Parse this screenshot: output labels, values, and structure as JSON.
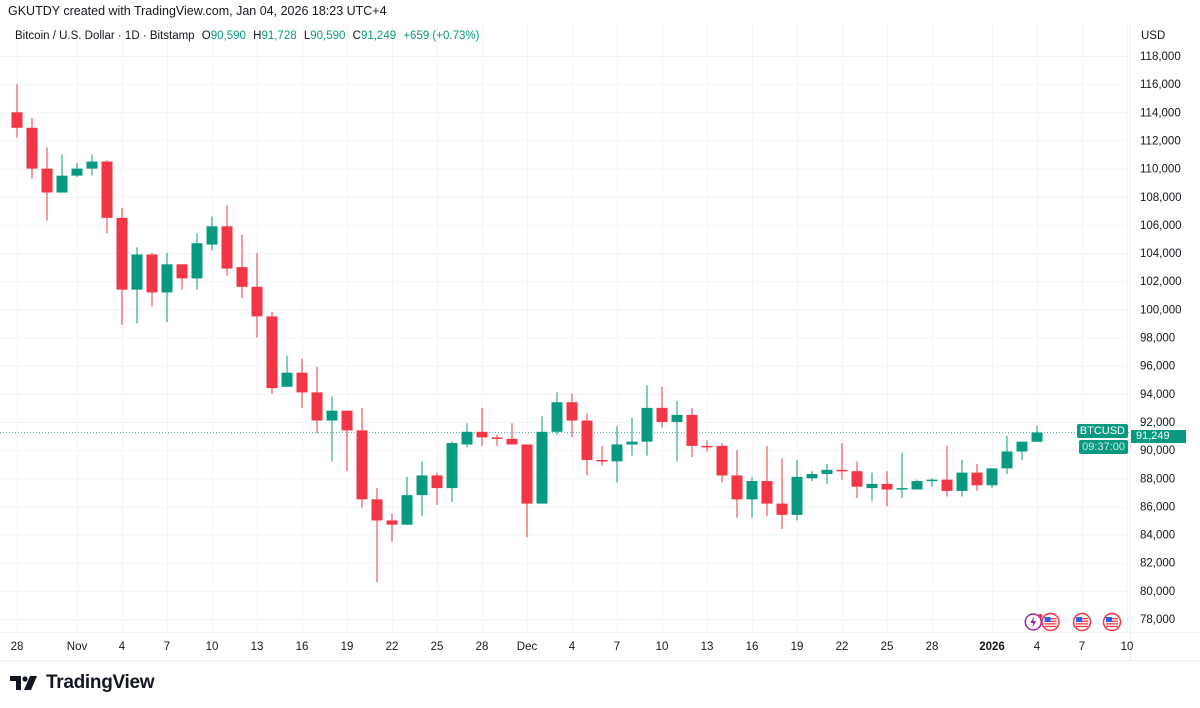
{
  "header": {
    "credit": "GKUTDY created with TradingView.com, Jan 04, 2026 18:23 UTC+4"
  },
  "legend": {
    "symbol": "Bitcoin / U.S. Dollar · 1D · Bitstamp",
    "open_key": "O",
    "open": "90,590",
    "high_key": "H",
    "high": "91,728",
    "low_key": "L",
    "low": "90,590",
    "close_key": "C",
    "close": "91,249",
    "change": "+659 (+0.73%)"
  },
  "price_axis": {
    "currency": "USD"
  },
  "last_price": {
    "symbol": "BTCUSD",
    "price": "91,249",
    "countdown": "09:37:00",
    "value": 91249
  },
  "logo": {
    "text": "TradingView"
  },
  "colors": {
    "up": "#089981",
    "down": "#F23645",
    "grid": "#f3f4f6",
    "text": "#131722"
  },
  "chart_data": {
    "type": "candlestick",
    "title": "Bitcoin / U.S. Dollar · 1D · Bitstamp",
    "ylim": [
      77000,
      119500
    ],
    "y_ticks": [
      78000,
      80000,
      82000,
      84000,
      86000,
      88000,
      90000,
      92000,
      94000,
      96000,
      98000,
      100000,
      102000,
      104000,
      106000,
      108000,
      110000,
      112000,
      114000,
      116000,
      118000
    ],
    "y_tick_labels": [
      "78,000",
      "80,000",
      "82,000",
      "84,000",
      "86,000",
      "88,000",
      "90,000",
      "92,000",
      "94,000",
      "96,000",
      "98,000",
      "100,000",
      "102,000",
      "104,000",
      "106,000",
      "108,000",
      "110,000",
      "112,000",
      "114,000",
      "116,000",
      "118,000"
    ],
    "x_ticks": [
      {
        "label": "28",
        "date": "2025-10-28"
      },
      {
        "label": "Nov",
        "date": "2025-11-01"
      },
      {
        "label": "4",
        "date": "2025-11-04"
      },
      {
        "label": "7",
        "date": "2025-11-07"
      },
      {
        "label": "10",
        "date": "2025-11-10"
      },
      {
        "label": "13",
        "date": "2025-11-13"
      },
      {
        "label": "16",
        "date": "2025-11-16"
      },
      {
        "label": "19",
        "date": "2025-11-19"
      },
      {
        "label": "22",
        "date": "2025-11-22"
      },
      {
        "label": "25",
        "date": "2025-11-25"
      },
      {
        "label": "28",
        "date": "2025-11-28"
      },
      {
        "label": "Dec",
        "date": "2025-12-01"
      },
      {
        "label": "4",
        "date": "2025-12-04"
      },
      {
        "label": "7",
        "date": "2025-12-07"
      },
      {
        "label": "10",
        "date": "2025-12-10"
      },
      {
        "label": "13",
        "date": "2025-12-13"
      },
      {
        "label": "16",
        "date": "2025-12-16"
      },
      {
        "label": "19",
        "date": "2025-12-19"
      },
      {
        "label": "22",
        "date": "2025-12-22"
      },
      {
        "label": "25",
        "date": "2025-12-25"
      },
      {
        "label": "28",
        "date": "2025-12-28"
      },
      {
        "label": "2026",
        "date": "2026-01-01",
        "bold": true
      },
      {
        "label": "4",
        "date": "2026-01-04"
      },
      {
        "label": "7",
        "date": "2026-01-07"
      },
      {
        "label": "10",
        "date": "2026-01-10"
      }
    ],
    "candles_fields": [
      "date",
      "open",
      "high",
      "low",
      "close"
    ],
    "candles": [
      [
        "2025-10-28",
        114000,
        116000,
        112200,
        112900
      ],
      [
        "2025-10-29",
        112900,
        113600,
        109300,
        110000
      ],
      [
        "2025-10-30",
        110000,
        111500,
        106300,
        108300
      ],
      [
        "2025-10-31",
        108300,
        111000,
        108300,
        109500
      ],
      [
        "2025-11-01",
        109500,
        110400,
        109400,
        110000
      ],
      [
        "2025-11-02",
        110000,
        111000,
        109500,
        110500
      ],
      [
        "2025-11-03",
        110500,
        110600,
        105400,
        106500
      ],
      [
        "2025-11-04",
        106500,
        107200,
        98900,
        101400
      ],
      [
        "2025-11-05",
        101400,
        104400,
        99000,
        103900
      ],
      [
        "2025-11-06",
        103900,
        104000,
        100200,
        101200
      ],
      [
        "2025-11-07",
        101200,
        104000,
        99100,
        103200
      ],
      [
        "2025-11-08",
        103200,
        103200,
        101400,
        102200
      ],
      [
        "2025-11-09",
        102200,
        105400,
        101400,
        104700
      ],
      [
        "2025-11-10",
        104600,
        106600,
        104200,
        105900
      ],
      [
        "2025-11-11",
        105900,
        107400,
        102400,
        102900
      ],
      [
        "2025-11-12",
        103000,
        105300,
        100800,
        101600
      ],
      [
        "2025-11-13",
        101600,
        104000,
        98000,
        99500
      ],
      [
        "2025-11-14",
        99500,
        99800,
        94000,
        94400
      ],
      [
        "2025-11-15",
        94500,
        96700,
        94500,
        95500
      ],
      [
        "2025-11-16",
        95500,
        96500,
        93000,
        94100
      ],
      [
        "2025-11-17",
        94100,
        95900,
        91200,
        92100
      ],
      [
        "2025-11-18",
        92100,
        93800,
        89200,
        92800
      ],
      [
        "2025-11-19",
        92800,
        92800,
        88500,
        91400
      ],
      [
        "2025-11-20",
        91400,
        93000,
        85900,
        86500
      ],
      [
        "2025-11-21",
        86500,
        87300,
        80600,
        85000
      ],
      [
        "2025-11-22",
        85000,
        85500,
        83500,
        84700
      ],
      [
        "2025-11-23",
        84700,
        88100,
        84700,
        86800
      ],
      [
        "2025-11-24",
        86800,
        89200,
        85300,
        88200
      ],
      [
        "2025-11-25",
        88200,
        88400,
        86100,
        87300
      ],
      [
        "2025-11-26",
        87300,
        90600,
        86300,
        90500
      ],
      [
        "2025-11-27",
        90400,
        91900,
        90200,
        91300
      ],
      [
        "2025-11-28",
        91300,
        93000,
        90300,
        90900
      ],
      [
        "2025-11-29",
        90900,
        91100,
        90300,
        90800
      ],
      [
        "2025-11-30",
        90800,
        91900,
        90400,
        90400
      ],
      [
        "2025-12-01",
        90400,
        90400,
        83800,
        86200
      ],
      [
        "2025-12-02",
        86200,
        92400,
        86200,
        91300
      ],
      [
        "2025-12-03",
        91300,
        94100,
        91100,
        93400
      ],
      [
        "2025-12-04",
        93400,
        94000,
        90900,
        92100
      ],
      [
        "2025-12-05",
        92100,
        92600,
        88200,
        89300
      ],
      [
        "2025-12-06",
        89300,
        90300,
        88900,
        89200
      ],
      [
        "2025-12-07",
        89200,
        91700,
        87700,
        90400
      ],
      [
        "2025-12-08",
        90400,
        92300,
        89600,
        90600
      ],
      [
        "2025-12-09",
        90600,
        94600,
        89600,
        93000
      ],
      [
        "2025-12-10",
        93000,
        94500,
        91600,
        92000
      ],
      [
        "2025-12-11",
        92000,
        93500,
        89200,
        92500
      ],
      [
        "2025-12-12",
        92500,
        93000,
        89500,
        90300
      ],
      [
        "2025-12-13",
        90300,
        90700,
        89900,
        90200
      ],
      [
        "2025-12-14",
        90300,
        90500,
        87700,
        88200
      ],
      [
        "2025-12-15",
        88200,
        90000,
        85200,
        86500
      ],
      [
        "2025-12-16",
        86500,
        88100,
        85200,
        87800
      ],
      [
        "2025-12-17",
        87800,
        90300,
        85300,
        86200
      ],
      [
        "2025-12-18",
        86200,
        89400,
        84400,
        85400
      ],
      [
        "2025-12-19",
        85400,
        89300,
        85000,
        88100
      ],
      [
        "2025-12-20",
        88000,
        88500,
        87800,
        88300
      ],
      [
        "2025-12-21",
        88300,
        89000,
        87600,
        88600
      ],
      [
        "2025-12-22",
        88600,
        90500,
        87900,
        88500
      ],
      [
        "2025-12-23",
        88500,
        89200,
        86600,
        87400
      ],
      [
        "2025-12-24",
        87300,
        88400,
        86400,
        87600
      ],
      [
        "2025-12-25",
        87600,
        88500,
        86000,
        87200
      ],
      [
        "2025-12-26",
        87200,
        89800,
        86600,
        87300
      ],
      [
        "2025-12-27",
        87200,
        87900,
        87200,
        87800
      ],
      [
        "2025-12-28",
        87800,
        88000,
        87400,
        87900
      ],
      [
        "2025-12-29",
        87900,
        90300,
        86700,
        87100
      ],
      [
        "2025-12-30",
        87100,
        89300,
        86700,
        88400
      ],
      [
        "2025-12-31",
        88400,
        89000,
        87100,
        87500
      ],
      [
        "2026-01-01",
        87500,
        88700,
        87300,
        88700
      ],
      [
        "2026-01-02",
        88700,
        91000,
        88300,
        89900
      ],
      [
        "2026-01-03",
        89900,
        90600,
        89300,
        90600
      ],
      [
        "2026-01-04",
        90590,
        91728,
        90590,
        91249
      ]
    ],
    "events": [
      {
        "icon": "lightning-event-icon",
        "date": "2026-01-04",
        "offset": -0.25
      },
      {
        "icon": "us-flag-event-icon",
        "date": "2026-01-04",
        "offset": 0.9
      },
      {
        "icon": "us-flag-event-icon",
        "date": "2026-01-07"
      },
      {
        "icon": "us-flag-event-icon",
        "date": "2026-01-09"
      }
    ],
    "grid": true
  }
}
